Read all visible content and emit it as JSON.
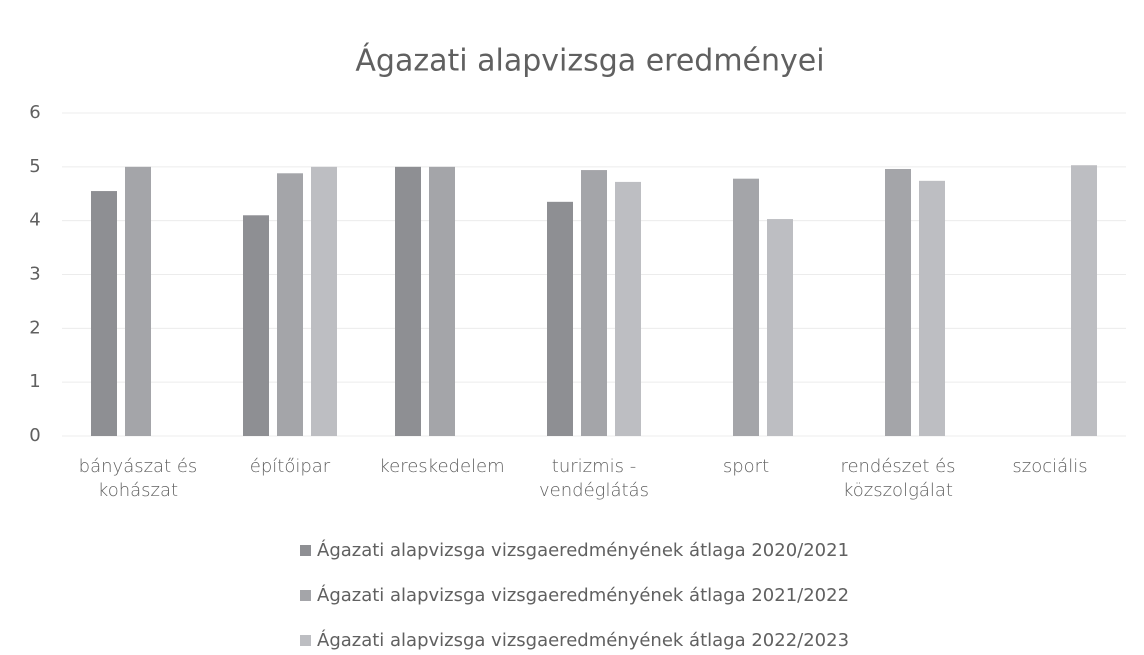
{
  "chart_data": {
    "type": "bar",
    "title": "Ágazati alapvizsga eredményei",
    "categories": [
      "bányászat és kohászat",
      "építőipar",
      "kereskedelem",
      "turizmis - vendéglátás",
      "sport",
      "rendészet és közszolgálat",
      "szociális"
    ],
    "series": [
      {
        "name": "Ágazati alapvizsga vizsgaeredményének átlaga 2020/2021",
        "color": "#8e8f93",
        "values": [
          4.55,
          4.1,
          5.0,
          4.35,
          null,
          null,
          null
        ]
      },
      {
        "name": "Ágazati alapvizsga vizsgaeredményének átlaga 2021/2022",
        "color": "#a4a5a9",
        "values": [
          5.0,
          4.88,
          5.0,
          4.94,
          4.78,
          4.96,
          null
        ]
      },
      {
        "name": "Ágazati alapvizsga vizsgaeredményének átlaga 2022/2023",
        "color": "#bdbec2",
        "values": [
          null,
          5.0,
          null,
          4.72,
          4.03,
          4.74,
          5.03
        ]
      }
    ],
    "ylim": [
      0,
      6
    ],
    "yticks": [
      0,
      1,
      2,
      3,
      4,
      5,
      6
    ],
    "grid": true,
    "legend": "bottom"
  }
}
